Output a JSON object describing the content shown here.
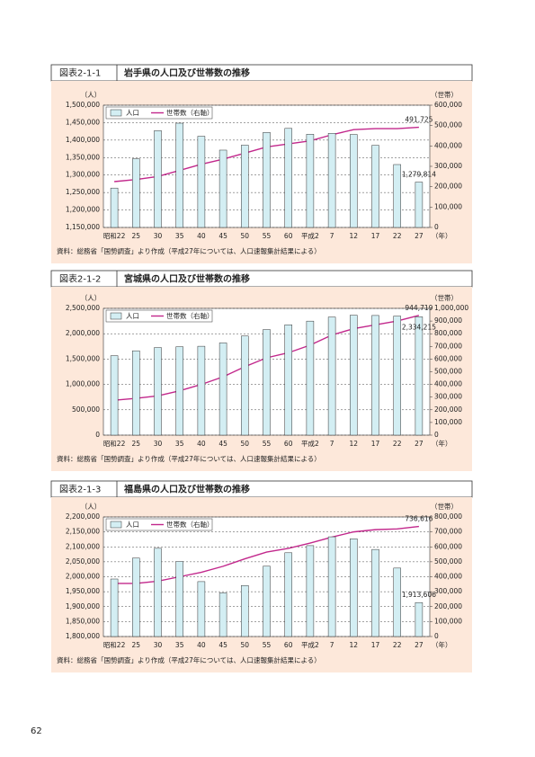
{
  "page_number": "62",
  "chart_data": [
    {
      "type": "bar",
      "figure_label": "図表2-1-1",
      "title": "岩手県の人口及び世帯数の推移",
      "source": "資料：総務省「国勢調査」より作成（平成27年については、人口速報集計結果による）",
      "y_unit": "（人）",
      "y2_unit": "（世帯）",
      "x_unit": "（年）",
      "categories": [
        "昭和22",
        "25",
        "30",
        "35",
        "40",
        "45",
        "50",
        "55",
        "60",
        "平成2",
        "7",
        "12",
        "17",
        "22",
        "27"
      ],
      "ylim": [
        1150000,
        1500000
      ],
      "yticks": [
        {
          "value": 1150000,
          "label": "1,150,000"
        },
        {
          "value": 1200000,
          "label": "1,200,000"
        },
        {
          "value": 1250000,
          "label": "1,250,000"
        },
        {
          "value": 1300000,
          "label": "1,300,000"
        },
        {
          "value": 1350000,
          "label": "1,350,000"
        },
        {
          "value": 1400000,
          "label": "1,400,000"
        },
        {
          "value": 1450000,
          "label": "1,450,000"
        },
        {
          "value": 1500000,
          "label": "1,500,000"
        }
      ],
      "y2lim": [
        0,
        600000
      ],
      "y2ticks": [
        0,
        {
          "value": 100000,
          "label": "100,000"
        },
        {
          "value": 200000,
          "label": "200,000"
        },
        {
          "value": 300000,
          "label": "300,000"
        },
        {
          "value": 400000,
          "label": "400,000"
        },
        {
          "value": 500000,
          "label": "500,000"
        },
        {
          "value": 600000,
          "label": "600,000"
        }
      ],
      "grid": true,
      "series": [
        {
          "name": "人口",
          "type": "bar",
          "color": "#d3eef3",
          "values": [
            1262743,
            1346728,
            1427097,
            1448517,
            1411118,
            1371383,
            1385563,
            1421927,
            1433611,
            1416928,
            1419505,
            1416180,
            1385041,
            1330147,
            1279814
          ],
          "value_labels": [
            null,
            null,
            null,
            null,
            null,
            null,
            null,
            null,
            null,
            null,
            null,
            null,
            null,
            null,
            "1,279,814"
          ]
        },
        {
          "name": "世帯数（右軸）",
          "type": "line",
          "axis": "y2",
          "color": "#c2288c",
          "values": [
            225000,
            235000,
            250000,
            280000,
            310000,
            335000,
            365000,
            395000,
            410000,
            425000,
            455000,
            480000,
            485000,
            485000,
            491725
          ],
          "value_labels": [
            null,
            null,
            null,
            null,
            null,
            null,
            null,
            null,
            null,
            null,
            null,
            null,
            null,
            null,
            "491,725"
          ]
        }
      ]
    },
    {
      "type": "bar",
      "figure_label": "図表2-1-2",
      "title": "宮城県の人口及び世帯数の推移",
      "source": "資料：総務省「国勢調査」より作成（平成27年については、人口速報集計結果による）",
      "y_unit": "（人）",
      "y2_unit": "（世帯）",
      "x_unit": "（年）",
      "categories": [
        "昭和22",
        "25",
        "30",
        "35",
        "40",
        "45",
        "50",
        "55",
        "60",
        "平成2",
        "7",
        "12",
        "17",
        "22",
        "27"
      ],
      "ylim": [
        0,
        2500000
      ],
      "yticks": [
        0,
        {
          "value": 500000,
          "label": "500,000"
        },
        {
          "value": 1000000,
          "label": "1,000,000"
        },
        {
          "value": 1500000,
          "label": "1,500,000"
        },
        {
          "value": 2000000,
          "label": "2,000,000"
        },
        {
          "value": 2500000,
          "label": "2,500,000"
        }
      ],
      "y2lim": [
        0,
        1000000
      ],
      "y2ticks": [
        0,
        {
          "value": 100000,
          "label": "100,000"
        },
        {
          "value": 200000,
          "label": "200,000"
        },
        {
          "value": 300000,
          "label": "300,000"
        },
        {
          "value": 400000,
          "label": "400,000"
        },
        {
          "value": 500000,
          "label": "500,000"
        },
        {
          "value": 600000,
          "label": "600,000"
        },
        {
          "value": 700000,
          "label": "700,000"
        },
        {
          "value": 800000,
          "label": "800,000"
        },
        {
          "value": 900000,
          "label": "900,000"
        },
        {
          "value": 1000000,
          "label": "1,000,000"
        }
      ],
      "grid": true,
      "series": [
        {
          "name": "人口",
          "type": "bar",
          "color": "#d3eef3",
          "values": [
            1566831,
            1663442,
            1727065,
            1743195,
            1753126,
            1819223,
            1955267,
            2082320,
            2176295,
            2248558,
            2328739,
            2365320,
            2360218,
            2348165,
            2334215
          ],
          "value_labels": [
            null,
            null,
            null,
            null,
            null,
            null,
            null,
            null,
            null,
            null,
            null,
            null,
            null,
            null,
            "2,334,215"
          ]
        },
        {
          "name": "世帯数（右軸）",
          "type": "line",
          "axis": "y2",
          "color": "#c2288c",
          "values": [
            275000,
            290000,
            310000,
            350000,
            400000,
            460000,
            540000,
            610000,
            650000,
            710000,
            790000,
            840000,
            870000,
            900000,
            944719
          ],
          "value_labels": [
            null,
            null,
            null,
            null,
            null,
            null,
            null,
            null,
            null,
            null,
            null,
            null,
            null,
            null,
            "944,719"
          ]
        }
      ]
    },
    {
      "type": "bar",
      "figure_label": "図表2-1-3",
      "title": "福島県の人口及び世帯数の推移",
      "source": "資料：総務省「国勢調査」より作成（平成27年については、人口速報集計結果による）",
      "y_unit": "（人）",
      "y2_unit": "（世帯）",
      "x_unit": "（年）",
      "categories": [
        "昭和22",
        "25",
        "30",
        "35",
        "40",
        "45",
        "50",
        "55",
        "60",
        "平成2",
        "7",
        "12",
        "17",
        "22",
        "27"
      ],
      "ylim": [
        1800000,
        2200000
      ],
      "yticks": [
        {
          "value": 1800000,
          "label": "1,800,000"
        },
        {
          "value": 1850000,
          "label": "1,850,000"
        },
        {
          "value": 1900000,
          "label": "1,900,000"
        },
        {
          "value": 1950000,
          "label": "1,950,000"
        },
        {
          "value": 2000000,
          "label": "2,000,000"
        },
        {
          "value": 2050000,
          "label": "2,050,000"
        },
        {
          "value": 2100000,
          "label": "2,100,000"
        },
        {
          "value": 2150000,
          "label": "2,150,000"
        },
        {
          "value": 2200000,
          "label": "2,200,000"
        }
      ],
      "y2lim": [
        0,
        800000
      ],
      "y2ticks": [
        0,
        {
          "value": 100000,
          "label": "100,000"
        },
        {
          "value": 200000,
          "label": "200,000"
        },
        {
          "value": 300000,
          "label": "300,000"
        },
        {
          "value": 400000,
          "label": "400,000"
        },
        {
          "value": 500000,
          "label": "500,000"
        },
        {
          "value": 600000,
          "label": "600,000"
        },
        {
          "value": 700000,
          "label": "700,000"
        },
        {
          "value": 800000,
          "label": "800,000"
        }
      ],
      "grid": true,
      "series": [
        {
          "name": "人口",
          "type": "bar",
          "color": "#d3eef3",
          "values": [
            1992460,
            2062394,
            2095237,
            2051137,
            1983754,
            1946077,
            1970616,
            2035272,
            2080304,
            2104058,
            2133592,
            2126935,
            2091319,
            2029064,
            1913606
          ],
          "value_labels": [
            null,
            null,
            null,
            null,
            null,
            null,
            null,
            null,
            null,
            null,
            null,
            null,
            null,
            null,
            "1,913,606"
          ]
        },
        {
          "name": "世帯数（右軸）",
          "type": "line",
          "axis": "y2",
          "color": "#c2288c",
          "values": [
            355000,
            355000,
            370000,
            400000,
            430000,
            470000,
            520000,
            565000,
            590000,
            625000,
            665000,
            700000,
            715000,
            720000,
            736616
          ],
          "value_labels": [
            null,
            null,
            null,
            null,
            null,
            null,
            null,
            null,
            null,
            null,
            null,
            null,
            null,
            null,
            "736,616"
          ]
        }
      ]
    }
  ]
}
